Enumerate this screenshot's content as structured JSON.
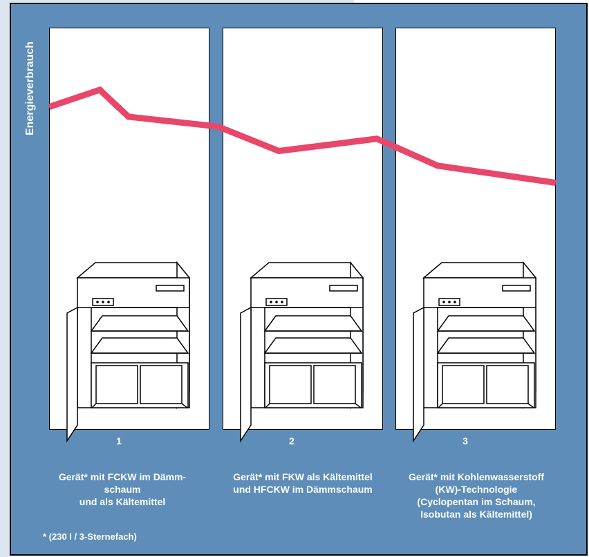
{
  "chart_data": {
    "type": "line",
    "ylabel": "Energieverbrauch",
    "categories": [
      "1",
      "2",
      "3"
    ],
    "captions": [
      "Gerät* mit FCKW im Dämm-\nschaum\nund als Kältemittel",
      "Gerät* mit FKW als Kältemittel\nund HFCKW im Dämmschaum",
      "Gerät* mit Kohlenwasserstoff\n(KW)-Technologie\n(Cyclopentan im Schaum,\nIsobutan als Kältemittel)"
    ],
    "line_color": "#e8476a",
    "series": [
      {
        "x": [
          0,
          0.3,
          0.47,
          1.0,
          1.36,
          1.94,
          2.3,
          3.0
        ],
        "y": [
          0.86,
          1.0,
          0.78,
          0.7,
          0.5,
          0.6,
          0.38,
          0.24
        ]
      }
    ]
  },
  "footnote": "* (230 l / 3-Sternefach)",
  "colors": {
    "panel": "#5d8db8",
    "frame": "#dbe6f1"
  }
}
